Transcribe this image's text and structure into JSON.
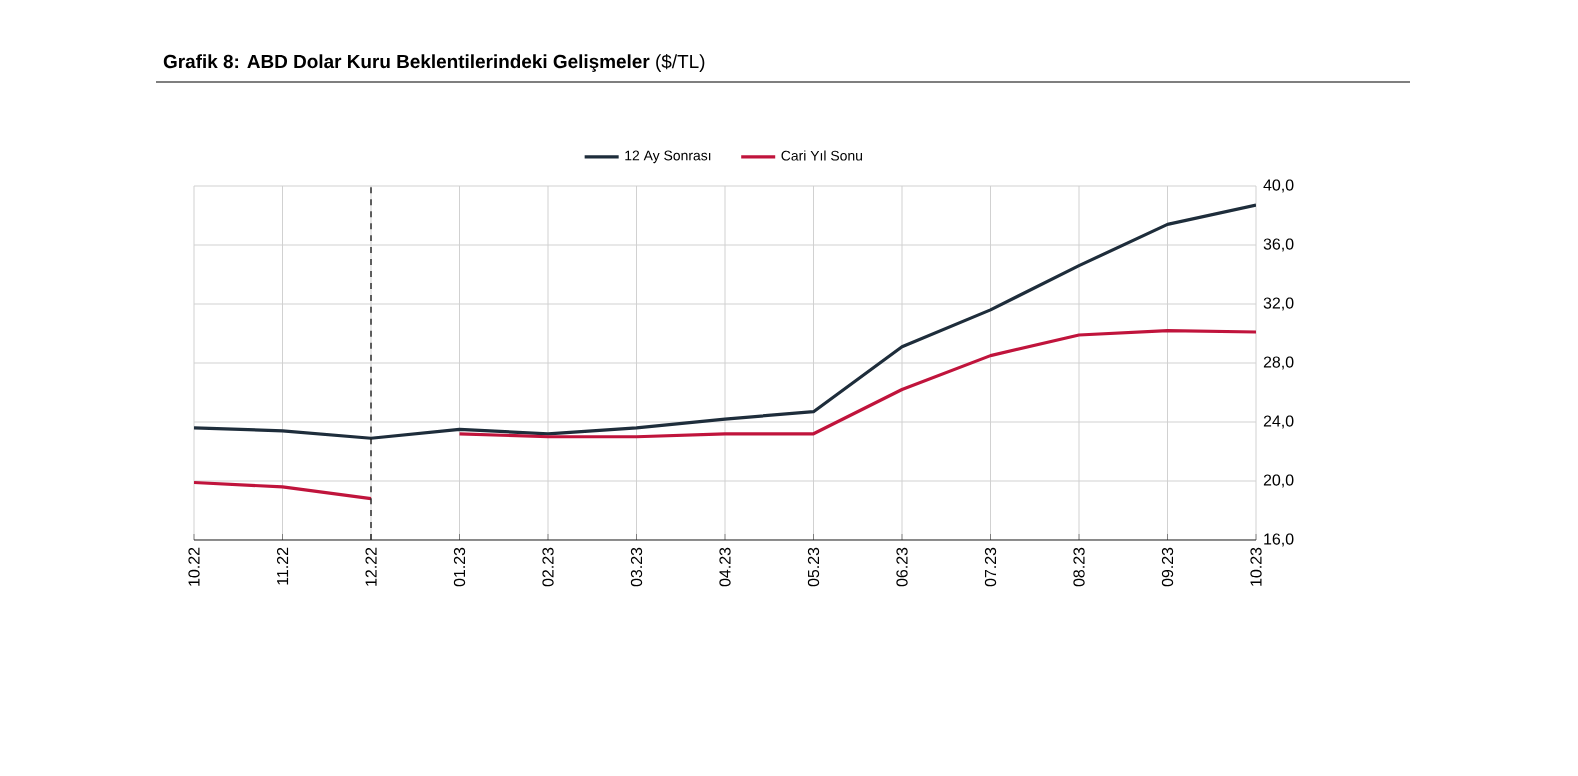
{
  "chart_data": {
    "type": "line",
    "title": "**Grafik 8: ABD Dolar Kuru Beklentilerindeki Gelişmeler** ($/TL)",
    "categories": [
      "10.22",
      "11.22",
      "12.22",
      "01.23",
      "02.23",
      "03.23",
      "04.23",
      "05.23",
      "06.23",
      "07.23",
      "08.23",
      "09.23",
      "10.23"
    ],
    "series": [
      {
        "name": "12 Ay Sonrası",
        "color": "#1e2d3b",
        "values": [
          23.6,
          23.4,
          22.9,
          23.5,
          23.2,
          23.6,
          24.2,
          24.7,
          29.1,
          31.6,
          34.6,
          37.4,
          38.7
        ]
      },
      {
        "name": "Cari Yıl Sonu",
        "color": "#c0143c",
        "values": [
          19.9,
          19.6,
          18.8,
          null,
          null,
          null,
          null,
          null,
          null,
          null,
          null,
          null,
          null
        ]
      },
      {
        "color": "#c0143c",
        "values": [
          null,
          null,
          null,
          23.2,
          23.0,
          23.0,
          23.2,
          23.2,
          26.2,
          28.5,
          29.9,
          30.2,
          30.1
        ]
      }
    ],
    "ylim": [
      16,
      40
    ],
    "yticks": [
      {
        "value": 16,
        "label": "16,0"
      },
      {
        "value": 20,
        "label": "20,0"
      },
      {
        "value": 24,
        "label": "24,0"
      },
      {
        "value": 28,
        "label": "28,0"
      },
      {
        "value": 32,
        "label": "32,0"
      },
      {
        "value": 36,
        "label": "36,0"
      },
      {
        "value": 40,
        "label": "40,0"
      }
    ],
    "ref_lines": [
      {
        "axis": "x",
        "value": "12.22",
        "color": "#222222",
        "line_style": "dashed"
      }
    ],
    "grid": true,
    "legend": "top",
    "marker": "none",
    "line_style": "solid"
  }
}
